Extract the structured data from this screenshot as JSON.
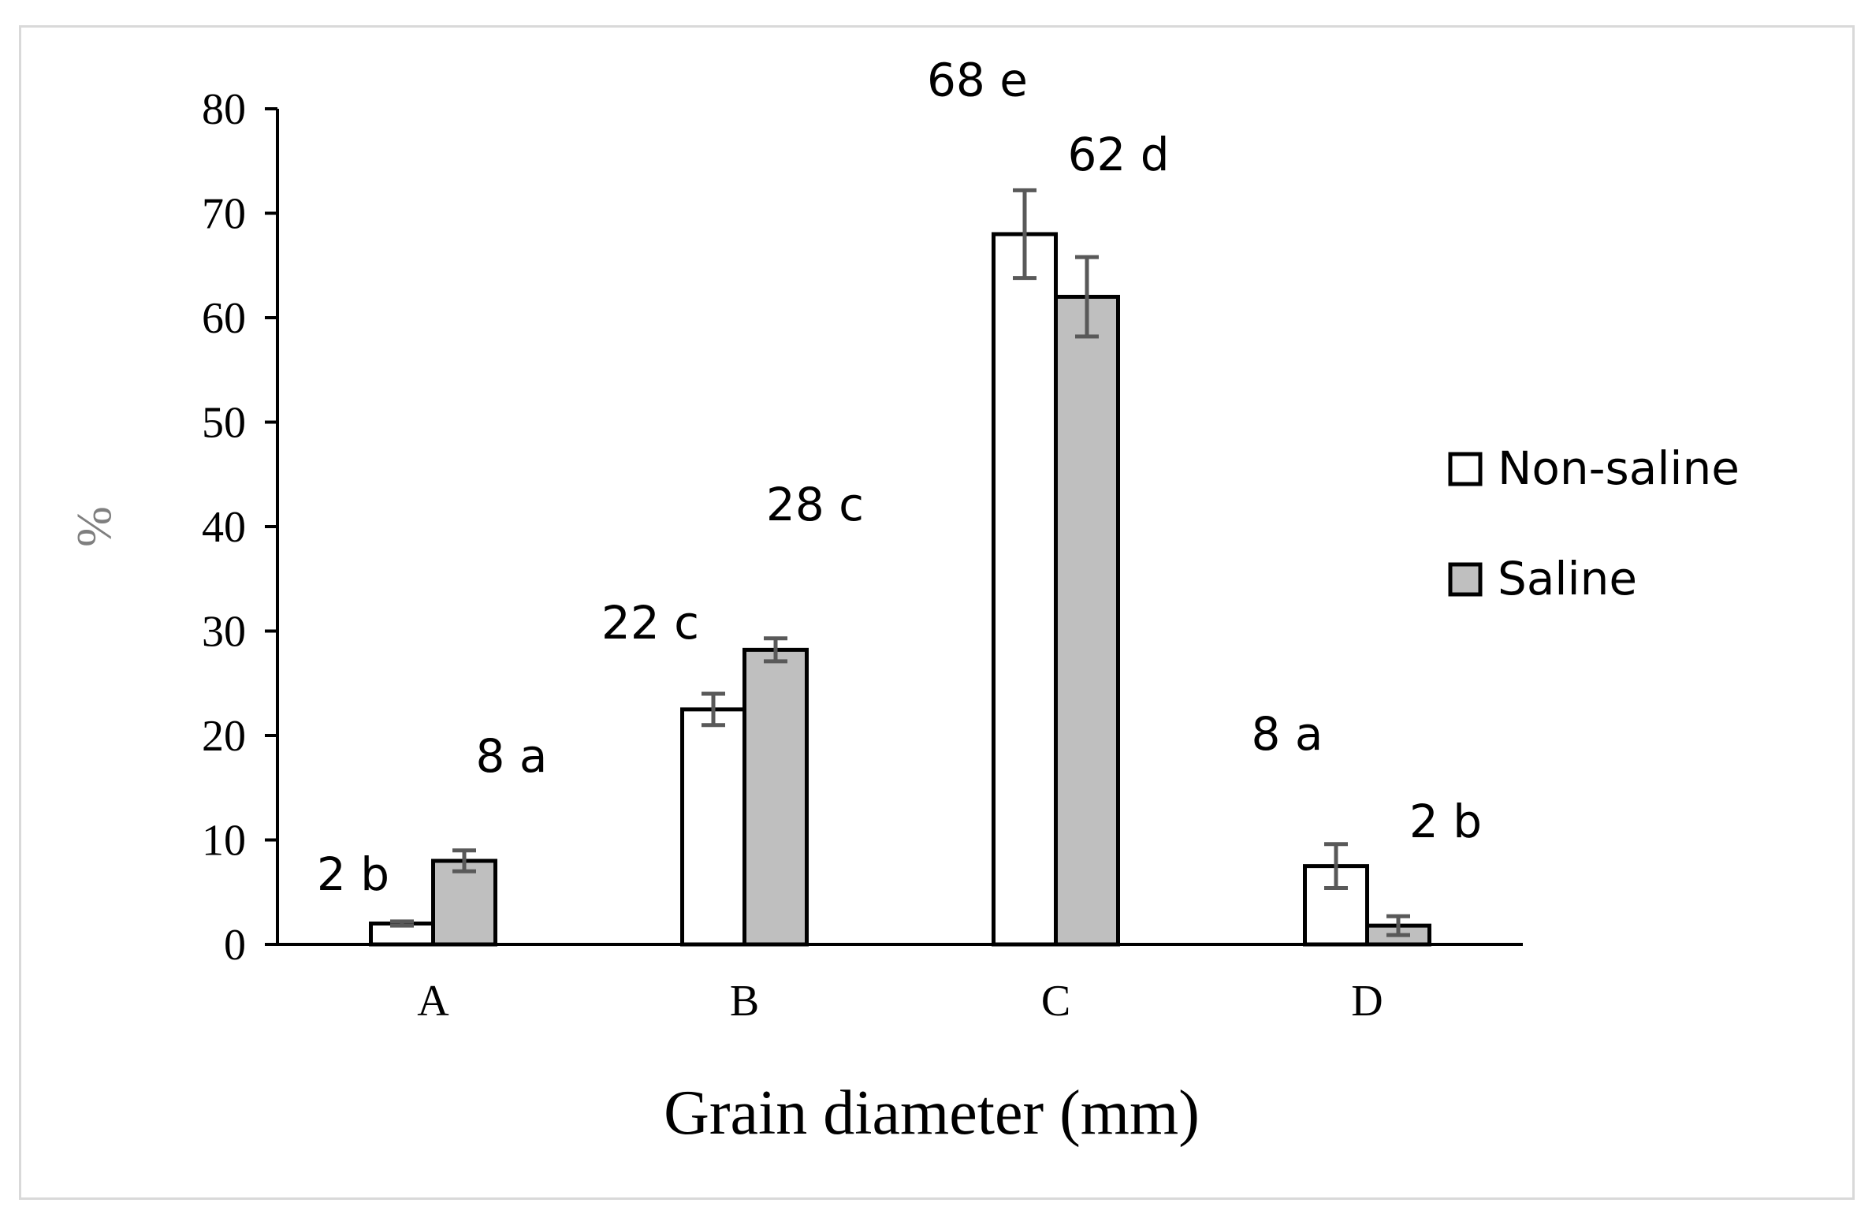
{
  "chart_data": {
    "type": "bar",
    "categories": [
      "A",
      "B",
      "C",
      "D"
    ],
    "series": [
      {
        "name": "Non-saline",
        "color": "#ffffff",
        "values": [
          2,
          22.5,
          68,
          7.5
        ],
        "errors": [
          0.2,
          1.5,
          4.2,
          2.1
        ],
        "labels": [
          "2 b",
          "22 c",
          "68 e",
          "8 a"
        ]
      },
      {
        "name": "Saline",
        "color": "#bfbfbf",
        "values": [
          8,
          28.2,
          62,
          1.8
        ],
        "errors": [
          1.0,
          1.1,
          3.8,
          0.9
        ],
        "labels": [
          "8 a",
          "28 c",
          "62 d",
          "2 b"
        ]
      }
    ],
    "xlabel": "Grain diameter (mm)",
    "ylabel": "%",
    "ylim": [
      0,
      80
    ],
    "yticks": [
      "0",
      "10",
      "20",
      "30",
      "40",
      "50",
      "60",
      "70",
      "80"
    ],
    "grid": false,
    "legend": "right",
    "axis_color": "#000000",
    "errorbar_color": "#595959"
  }
}
